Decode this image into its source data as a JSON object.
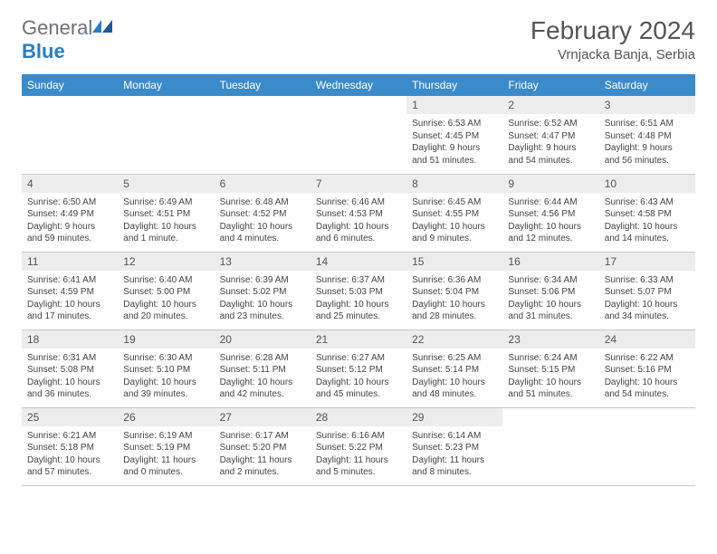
{
  "logo": {
    "general": "General",
    "blue": "Blue"
  },
  "title": "February 2024",
  "location": "Vrnjacka Banja, Serbia",
  "weekdays": [
    "Sunday",
    "Monday",
    "Tuesday",
    "Wednesday",
    "Thursday",
    "Friday",
    "Saturday"
  ],
  "colors": {
    "header_bg": "#3b8bca",
    "header_text": "#ffffff",
    "daynum_bg": "#ededed",
    "text": "#444444",
    "border": "#c8c8c8"
  },
  "weeks": [
    [
      {
        "empty": true
      },
      {
        "empty": true
      },
      {
        "empty": true
      },
      {
        "empty": true
      },
      {
        "num": "1",
        "sunrise": "6:53 AM",
        "sunset": "4:45 PM",
        "daylight": "9 hours and 51 minutes."
      },
      {
        "num": "2",
        "sunrise": "6:52 AM",
        "sunset": "4:47 PM",
        "daylight": "9 hours and 54 minutes."
      },
      {
        "num": "3",
        "sunrise": "6:51 AM",
        "sunset": "4:48 PM",
        "daylight": "9 hours and 56 minutes."
      }
    ],
    [
      {
        "num": "4",
        "sunrise": "6:50 AM",
        "sunset": "4:49 PM",
        "daylight": "9 hours and 59 minutes."
      },
      {
        "num": "5",
        "sunrise": "6:49 AM",
        "sunset": "4:51 PM",
        "daylight": "10 hours and 1 minute."
      },
      {
        "num": "6",
        "sunrise": "6:48 AM",
        "sunset": "4:52 PM",
        "daylight": "10 hours and 4 minutes."
      },
      {
        "num": "7",
        "sunrise": "6:46 AM",
        "sunset": "4:53 PM",
        "daylight": "10 hours and 6 minutes."
      },
      {
        "num": "8",
        "sunrise": "6:45 AM",
        "sunset": "4:55 PM",
        "daylight": "10 hours and 9 minutes."
      },
      {
        "num": "9",
        "sunrise": "6:44 AM",
        "sunset": "4:56 PM",
        "daylight": "10 hours and 12 minutes."
      },
      {
        "num": "10",
        "sunrise": "6:43 AM",
        "sunset": "4:58 PM",
        "daylight": "10 hours and 14 minutes."
      }
    ],
    [
      {
        "num": "11",
        "sunrise": "6:41 AM",
        "sunset": "4:59 PM",
        "daylight": "10 hours and 17 minutes."
      },
      {
        "num": "12",
        "sunrise": "6:40 AM",
        "sunset": "5:00 PM",
        "daylight": "10 hours and 20 minutes."
      },
      {
        "num": "13",
        "sunrise": "6:39 AM",
        "sunset": "5:02 PM",
        "daylight": "10 hours and 23 minutes."
      },
      {
        "num": "14",
        "sunrise": "6:37 AM",
        "sunset": "5:03 PM",
        "daylight": "10 hours and 25 minutes."
      },
      {
        "num": "15",
        "sunrise": "6:36 AM",
        "sunset": "5:04 PM",
        "daylight": "10 hours and 28 minutes."
      },
      {
        "num": "16",
        "sunrise": "6:34 AM",
        "sunset": "5:06 PM",
        "daylight": "10 hours and 31 minutes."
      },
      {
        "num": "17",
        "sunrise": "6:33 AM",
        "sunset": "5:07 PM",
        "daylight": "10 hours and 34 minutes."
      }
    ],
    [
      {
        "num": "18",
        "sunrise": "6:31 AM",
        "sunset": "5:08 PM",
        "daylight": "10 hours and 36 minutes."
      },
      {
        "num": "19",
        "sunrise": "6:30 AM",
        "sunset": "5:10 PM",
        "daylight": "10 hours and 39 minutes."
      },
      {
        "num": "20",
        "sunrise": "6:28 AM",
        "sunset": "5:11 PM",
        "daylight": "10 hours and 42 minutes."
      },
      {
        "num": "21",
        "sunrise": "6:27 AM",
        "sunset": "5:12 PM",
        "daylight": "10 hours and 45 minutes."
      },
      {
        "num": "22",
        "sunrise": "6:25 AM",
        "sunset": "5:14 PM",
        "daylight": "10 hours and 48 minutes."
      },
      {
        "num": "23",
        "sunrise": "6:24 AM",
        "sunset": "5:15 PM",
        "daylight": "10 hours and 51 minutes."
      },
      {
        "num": "24",
        "sunrise": "6:22 AM",
        "sunset": "5:16 PM",
        "daylight": "10 hours and 54 minutes."
      }
    ],
    [
      {
        "num": "25",
        "sunrise": "6:21 AM",
        "sunset": "5:18 PM",
        "daylight": "10 hours and 57 minutes."
      },
      {
        "num": "26",
        "sunrise": "6:19 AM",
        "sunset": "5:19 PM",
        "daylight": "11 hours and 0 minutes."
      },
      {
        "num": "27",
        "sunrise": "6:17 AM",
        "sunset": "5:20 PM",
        "daylight": "11 hours and 2 minutes."
      },
      {
        "num": "28",
        "sunrise": "6:16 AM",
        "sunset": "5:22 PM",
        "daylight": "11 hours and 5 minutes."
      },
      {
        "num": "29",
        "sunrise": "6:14 AM",
        "sunset": "5:23 PM",
        "daylight": "11 hours and 8 minutes."
      },
      {
        "empty": true
      },
      {
        "empty": true
      }
    ]
  ],
  "labels": {
    "sunrise": "Sunrise:",
    "sunset": "Sunset:",
    "daylight": "Daylight:"
  }
}
